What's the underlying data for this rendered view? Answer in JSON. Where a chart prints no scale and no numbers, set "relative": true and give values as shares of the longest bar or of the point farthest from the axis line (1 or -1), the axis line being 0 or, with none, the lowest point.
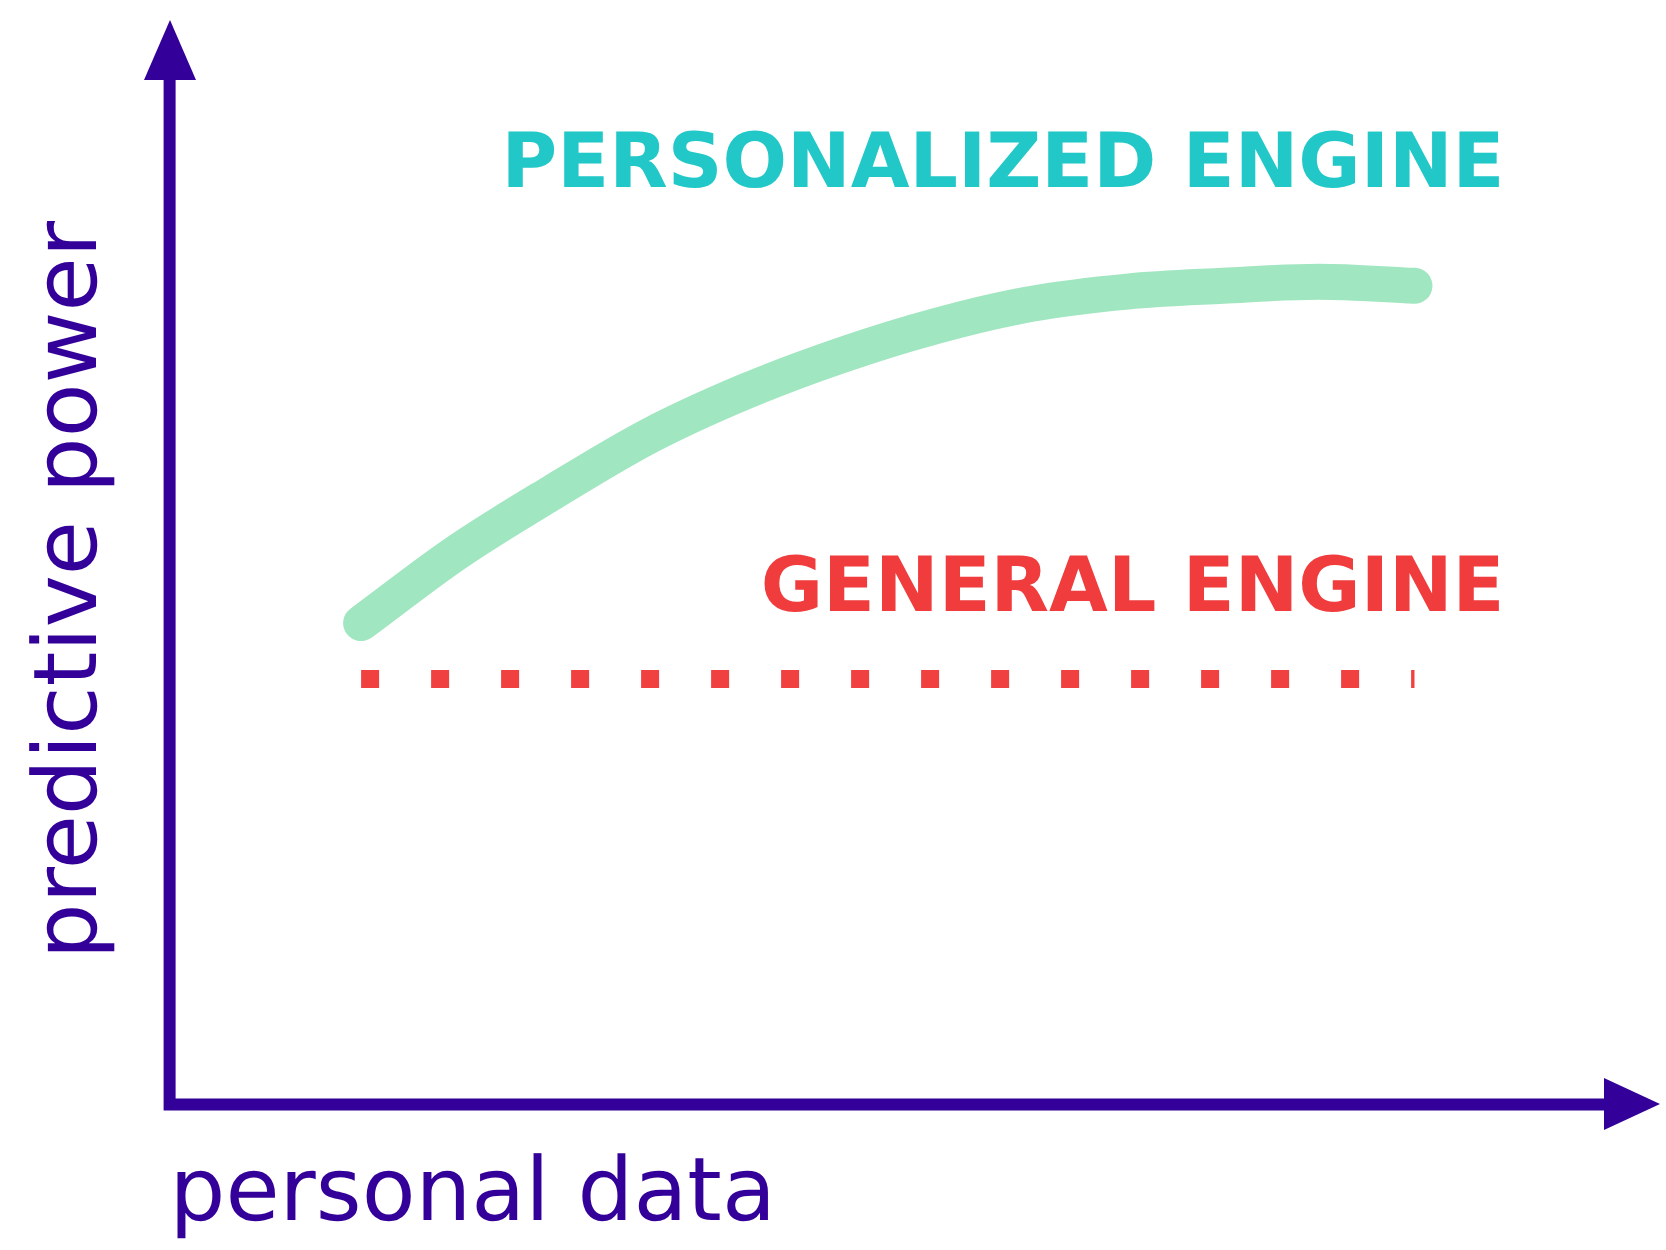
{
  "chart_data": {
    "type": "line",
    "relative": true,
    "xlabel": "personal data",
    "ylabel": "predictive power",
    "categories": [
      null,
      null,
      null,
      null,
      null,
      null,
      null,
      null,
      null,
      null,
      null,
      null,
      null,
      null,
      null,
      null
    ],
    "series": [
      {
        "name": "PERSONALIZED ENGINE",
        "color": "#a0e6c0",
        "values": [
          null,
          null,
          0.585,
          0.671,
          0.744,
          0.812,
          0.866,
          0.91,
          0.946,
          0.973,
          0.988,
          0.995,
          1,
          0.995,
          null,
          null
        ]
      },
      {
        "name": "GENERAL ENGINE",
        "color": "#f04040",
        "line_style": "dotted",
        "values": [
          null,
          null,
          0.517,
          0.517,
          0.517,
          0.517,
          0.517,
          0.517,
          0.517,
          0.517,
          0.517,
          0.517,
          0.517,
          0.517,
          null,
          null
        ]
      }
    ],
    "grid": false,
    "legend": false,
    "tick_labels": false
  }
}
